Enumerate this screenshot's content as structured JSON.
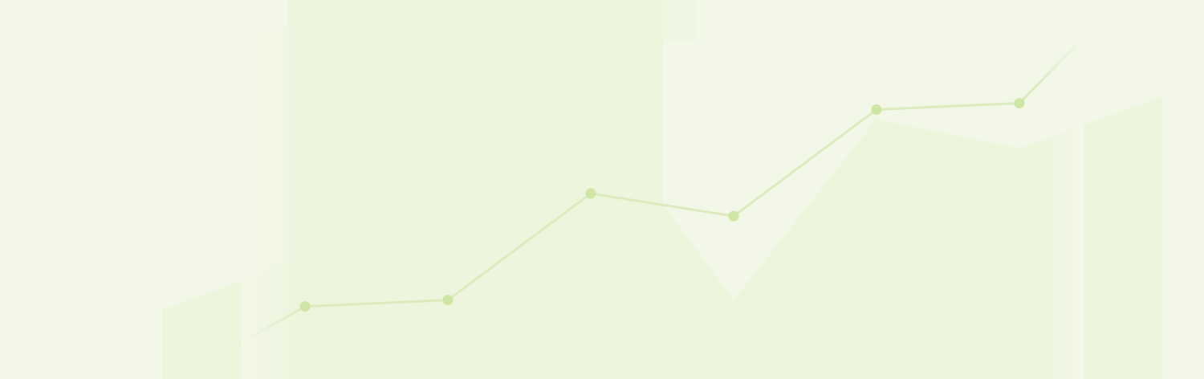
{
  "colors": {
    "background": "#f3f7e8",
    "panel_fill": "#edf5dc",
    "area_fill": "#edf5dc",
    "area_gap": "#f5f7ec",
    "line": "#dcebbd",
    "point": "#cfe5a3"
  },
  "chart_data": {
    "type": "line",
    "title": "",
    "xlabel": "",
    "ylabel": "",
    "x": [
      1,
      2,
      3,
      4,
      5,
      6,
      7
    ],
    "ylim": [
      0,
      10
    ],
    "grid": false,
    "legend": "none",
    "series": [
      {
        "values": [
          1.5,
          1.7,
          5.0,
          4.3,
          7.6,
          7.8,
          null
        ]
      }
    ],
    "background_area": {
      "x": [
        0,
        1,
        2,
        3,
        4,
        5,
        6,
        7
      ],
      "values": [
        1.4,
        3.0,
        2.1,
        7.7,
        1.7,
        7.3,
        6.4,
        8.0
      ]
    }
  }
}
